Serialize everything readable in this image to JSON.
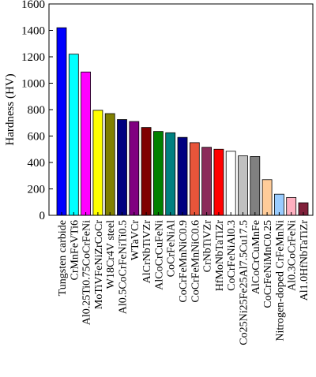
{
  "chart_data": {
    "type": "bar",
    "title": "",
    "xlabel": "",
    "ylabel": "Hardness (HV)",
    "ylim": [
      0,
      1600
    ],
    "yticks": [
      0,
      200,
      400,
      600,
      800,
      1000,
      1200,
      1400,
      1600
    ],
    "grid": false,
    "legend": "none",
    "categories": [
      "Tungsten carbide",
      "CrMnFeVTi6",
      "Al0.25Ti0.75CoCrFeNi",
      "MoTiVFeNiZrCoCr",
      "W18Cr4V steel",
      "Al0.5CoCrFeNiTi0.5",
      "WTaVCr",
      "AlCrNbTiVZr",
      "AlCoCrCuFeNi",
      "CoCrFeNiAl",
      "CoCrFeMnNiC0.9",
      "CoCrFeMnNiC0.6",
      "CrNbTiVZr",
      "HfMoNbTaTiZr",
      "CoCrFeNiAl0.3",
      "Co25Ni25Fe25Al7.5Cu17.5",
      "AlCoCrCuMnFe",
      "CoCrFeNiMnC0.25",
      "Nitrogen-doped CrFeMnNi",
      "Al0.3CoCrFeNi",
      "Al1.0HfNbTaTiZr"
    ],
    "values": [
      1420,
      1220,
      1085,
      795,
      770,
      725,
      710,
      665,
      635,
      625,
      590,
      550,
      515,
      500,
      485,
      450,
      445,
      270,
      160,
      135,
      95
    ],
    "colors": [
      "#0000ff",
      "#00ffff",
      "#ff00ff",
      "#ffff00",
      "#808000",
      "#000080",
      "#800080",
      "#800000",
      "#008000",
      "#008080",
      "#000080",
      "#e8553a",
      "#8b2b5a",
      "#ff0000",
      "#ffffff",
      "#c0c0c0",
      "#808080",
      "#ffcc99",
      "#99ccff",
      "#ffb0c0",
      "#80203a"
    ]
  }
}
